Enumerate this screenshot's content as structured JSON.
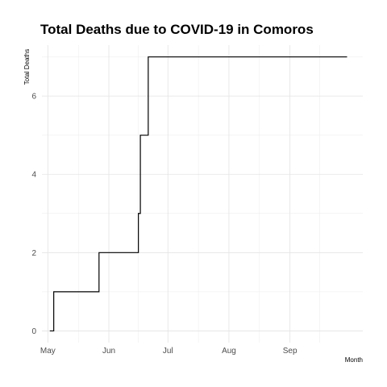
{
  "chart_data": {
    "type": "line",
    "title": "Total Deaths due to COVID-19 in Comoros",
    "xlabel": "Month",
    "ylabel": "Total Deaths",
    "x_ticks": [
      "May",
      "Jun",
      "Jul",
      "Aug",
      "Sep"
    ],
    "x_tick_dates": [
      "2020-05-01",
      "2020-06-01",
      "2020-07-01",
      "2020-08-01",
      "2020-09-01"
    ],
    "xlim": [
      "2020-04-28",
      "2020-10-08"
    ],
    "ylim": [
      -0.3,
      7.3
    ],
    "y_ticks": [
      0,
      2,
      4,
      6
    ],
    "grid": true,
    "line_color": "#000000",
    "series": [
      {
        "points": [
          {
            "x": "2020-05-02",
            "y": 0
          },
          {
            "x": "2020-05-04",
            "y": 1
          },
          {
            "x": "2020-05-27",
            "y": 2
          },
          {
            "x": "2020-06-16",
            "y": 3
          },
          {
            "x": "2020-06-17",
            "y": 5
          },
          {
            "x": "2020-06-21",
            "y": 7
          },
          {
            "x": "2020-09-30",
            "y": 7
          }
        ]
      }
    ]
  }
}
